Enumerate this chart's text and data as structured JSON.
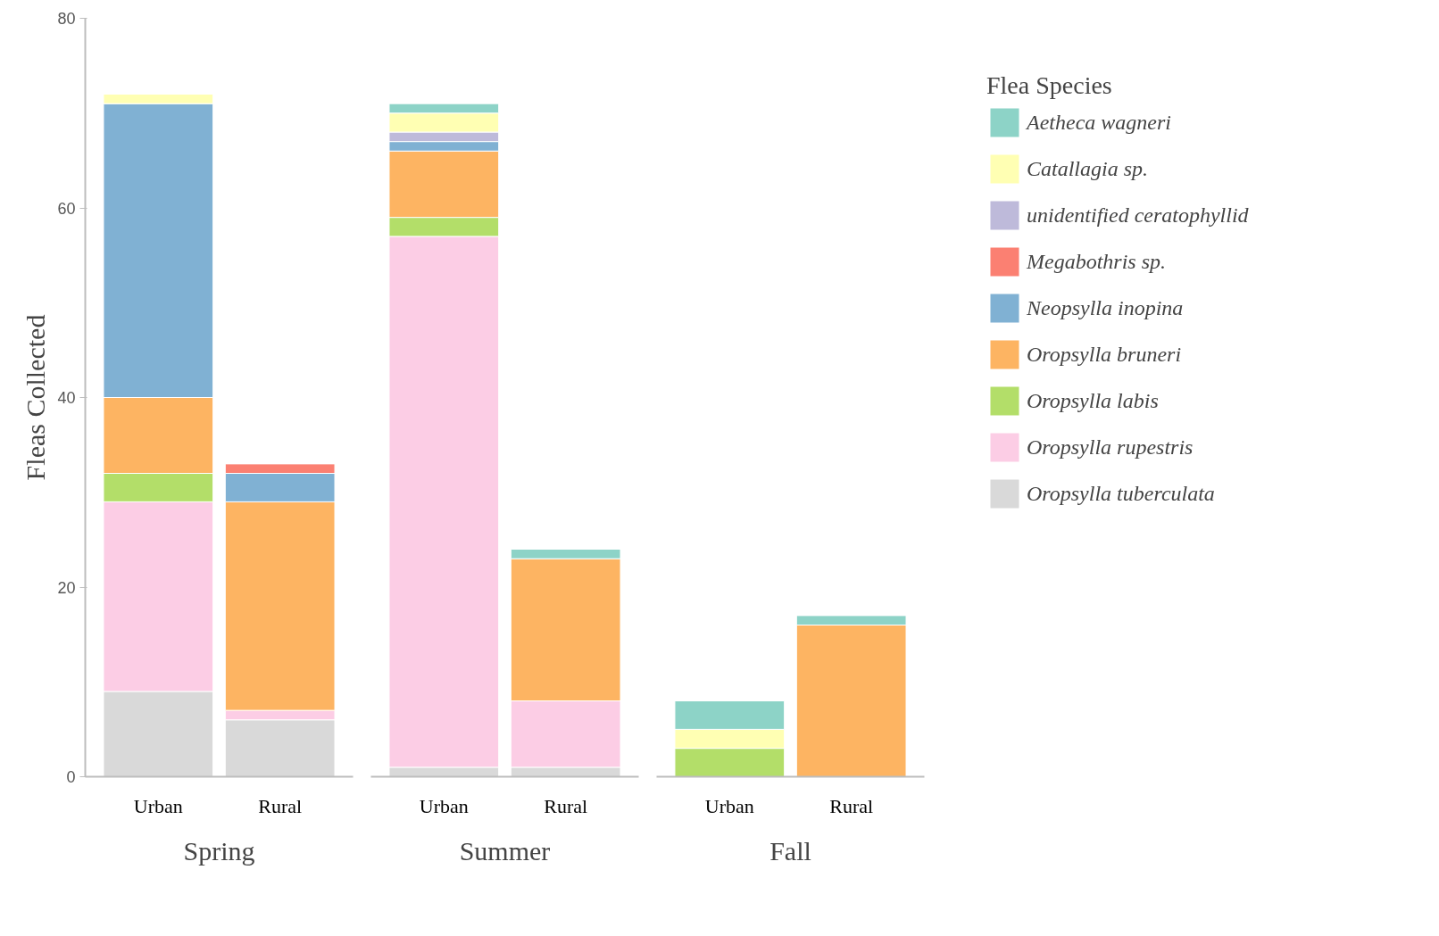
{
  "chart_data": [
    {
      "type": "bar",
      "stacked": true,
      "xlabel": "Spring",
      "ylabel": "Fleas Collected",
      "categories": [
        "Urban",
        "Rural"
      ],
      "ylim": [
        0,
        80
      ],
      "yticks": [
        0,
        20,
        40,
        60,
        80
      ],
      "series": [
        {
          "color": "#d9d9d9",
          "values": [
            9,
            6
          ]
        },
        {
          "color": "#fccde5",
          "values": [
            20,
            1
          ]
        },
        {
          "color": "#b3de69",
          "values": [
            3,
            null
          ]
        },
        {
          "color": "#fdb462",
          "values": [
            8,
            22
          ]
        },
        {
          "color": "#80b1d3",
          "values": [
            31,
            3
          ]
        },
        {
          "color": "#fb8072",
          "values": [
            null,
            1
          ]
        },
        {
          "color": "#bebada",
          "values": [
            null,
            null
          ]
        },
        {
          "color": "#ffffb3",
          "values": [
            1,
            null
          ]
        },
        {
          "color": "#8dd3c7",
          "values": [
            null,
            null
          ]
        }
      ]
    },
    {
      "type": "bar",
      "stacked": true,
      "xlabel": "Summer",
      "categories": [
        "Urban",
        "Rural"
      ],
      "ylim": [
        0,
        80
      ],
      "yticks": [
        0,
        20,
        40,
        60,
        80
      ],
      "tick_labels": "x",
      "series": [
        {
          "color": "#d9d9d9",
          "values": [
            1,
            1
          ]
        },
        {
          "color": "#fccde5",
          "values": [
            56,
            7
          ]
        },
        {
          "color": "#b3de69",
          "values": [
            2,
            null
          ]
        },
        {
          "color": "#fdb462",
          "values": [
            7,
            15
          ]
        },
        {
          "color": "#80b1d3",
          "values": [
            1,
            null
          ]
        },
        {
          "color": "#fb8072",
          "values": [
            null,
            null
          ]
        },
        {
          "color": "#bebada",
          "values": [
            1,
            null
          ]
        },
        {
          "color": "#ffffb3",
          "values": [
            2,
            null
          ]
        },
        {
          "color": "#8dd3c7",
          "values": [
            1,
            1
          ]
        }
      ]
    },
    {
      "type": "bar",
      "stacked": true,
      "xlabel": "Fall",
      "categories": [
        "Urban",
        "Rural"
      ],
      "ylim": [
        0,
        80
      ],
      "yticks": [
        0,
        20,
        40,
        60,
        80
      ],
      "tick_labels": "x",
      "legend": "right",
      "legend_title": "Flea Species",
      "series": [
        {
          "name": "Oropsylla tuberculata",
          "color": "#d9d9d9",
          "values": [
            null,
            null
          ]
        },
        {
          "name": "Oropsylla rupestris",
          "color": "#fccde5",
          "values": [
            null,
            null
          ]
        },
        {
          "name": "Oropsylla labis",
          "color": "#b3de69",
          "values": [
            3,
            null
          ]
        },
        {
          "name": "Oropsylla bruneri",
          "color": "#fdb462",
          "values": [
            null,
            16
          ]
        },
        {
          "name": "Neopsylla inopina",
          "color": "#80b1d3",
          "values": [
            null,
            null
          ]
        },
        {
          "name": "Megabothris sp.",
          "color": "#fb8072",
          "values": [
            null,
            null
          ]
        },
        {
          "name": "unidentified ceratophyllid",
          "color": "#bebada",
          "values": [
            null,
            null
          ]
        },
        {
          "name": "Catallagia sp.",
          "color": "#ffffb3",
          "values": [
            2,
            null
          ]
        },
        {
          "name": "Aetheca wagneri",
          "color": "#8dd3c7",
          "values": [
            3,
            1
          ]
        }
      ]
    }
  ]
}
